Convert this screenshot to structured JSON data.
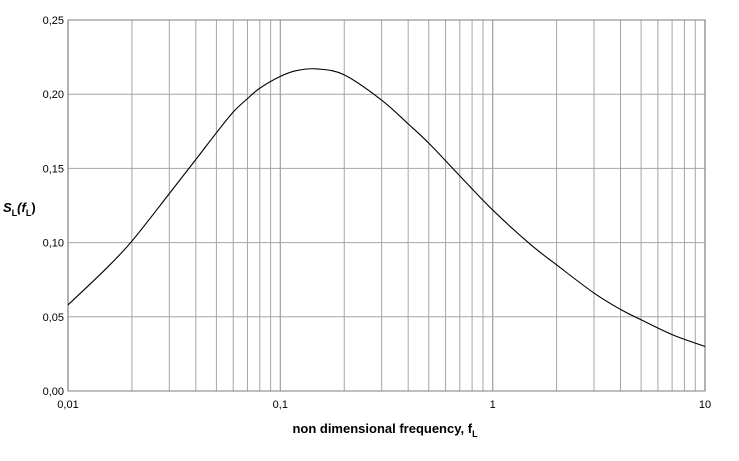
{
  "chart_data": {
    "type": "line",
    "title": "",
    "xlabel": "non dimensional frequency, f",
    "xlabel_subscript": "L",
    "ylabel_main": "S",
    "ylabel_sub1": "L",
    "ylabel_mid": "(f",
    "ylabel_sub2": "L",
    "ylabel_end": ")",
    "x_scale": "log",
    "xlim": [
      0.01,
      10
    ],
    "ylim": [
      0,
      0.25
    ],
    "x_ticks": [
      0.01,
      0.1,
      1,
      10
    ],
    "x_tick_labels": [
      "0,01",
      "0,1",
      "1",
      "10"
    ],
    "y_ticks": [
      0,
      0.05,
      0.1,
      0.15,
      0.2,
      0.25
    ],
    "y_tick_labels": [
      "0,00",
      "0,05",
      "0,10",
      "0,15",
      "0,20",
      "0,25"
    ],
    "grid": true,
    "legend": "none",
    "line_color": "#000000",
    "grid_color": "#a6a6a6",
    "series": [
      {
        "x": [
          0.01,
          0.015,
          0.02,
          0.03,
          0.04,
          0.05,
          0.06,
          0.07,
          0.08,
          0.1,
          0.12,
          0.15,
          0.2,
          0.3,
          0.4,
          0.5,
          0.7,
          1,
          1.5,
          2,
          3,
          4,
          5,
          7,
          10
        ],
        "y": [
          0.058,
          0.082,
          0.101,
          0.133,
          0.156,
          0.174,
          0.188,
          0.197,
          0.204,
          0.212,
          0.216,
          0.217,
          0.213,
          0.196,
          0.18,
          0.167,
          0.145,
          0.122,
          0.099,
          0.085,
          0.066,
          0.055,
          0.048,
          0.038,
          0.03
        ]
      }
    ]
  }
}
